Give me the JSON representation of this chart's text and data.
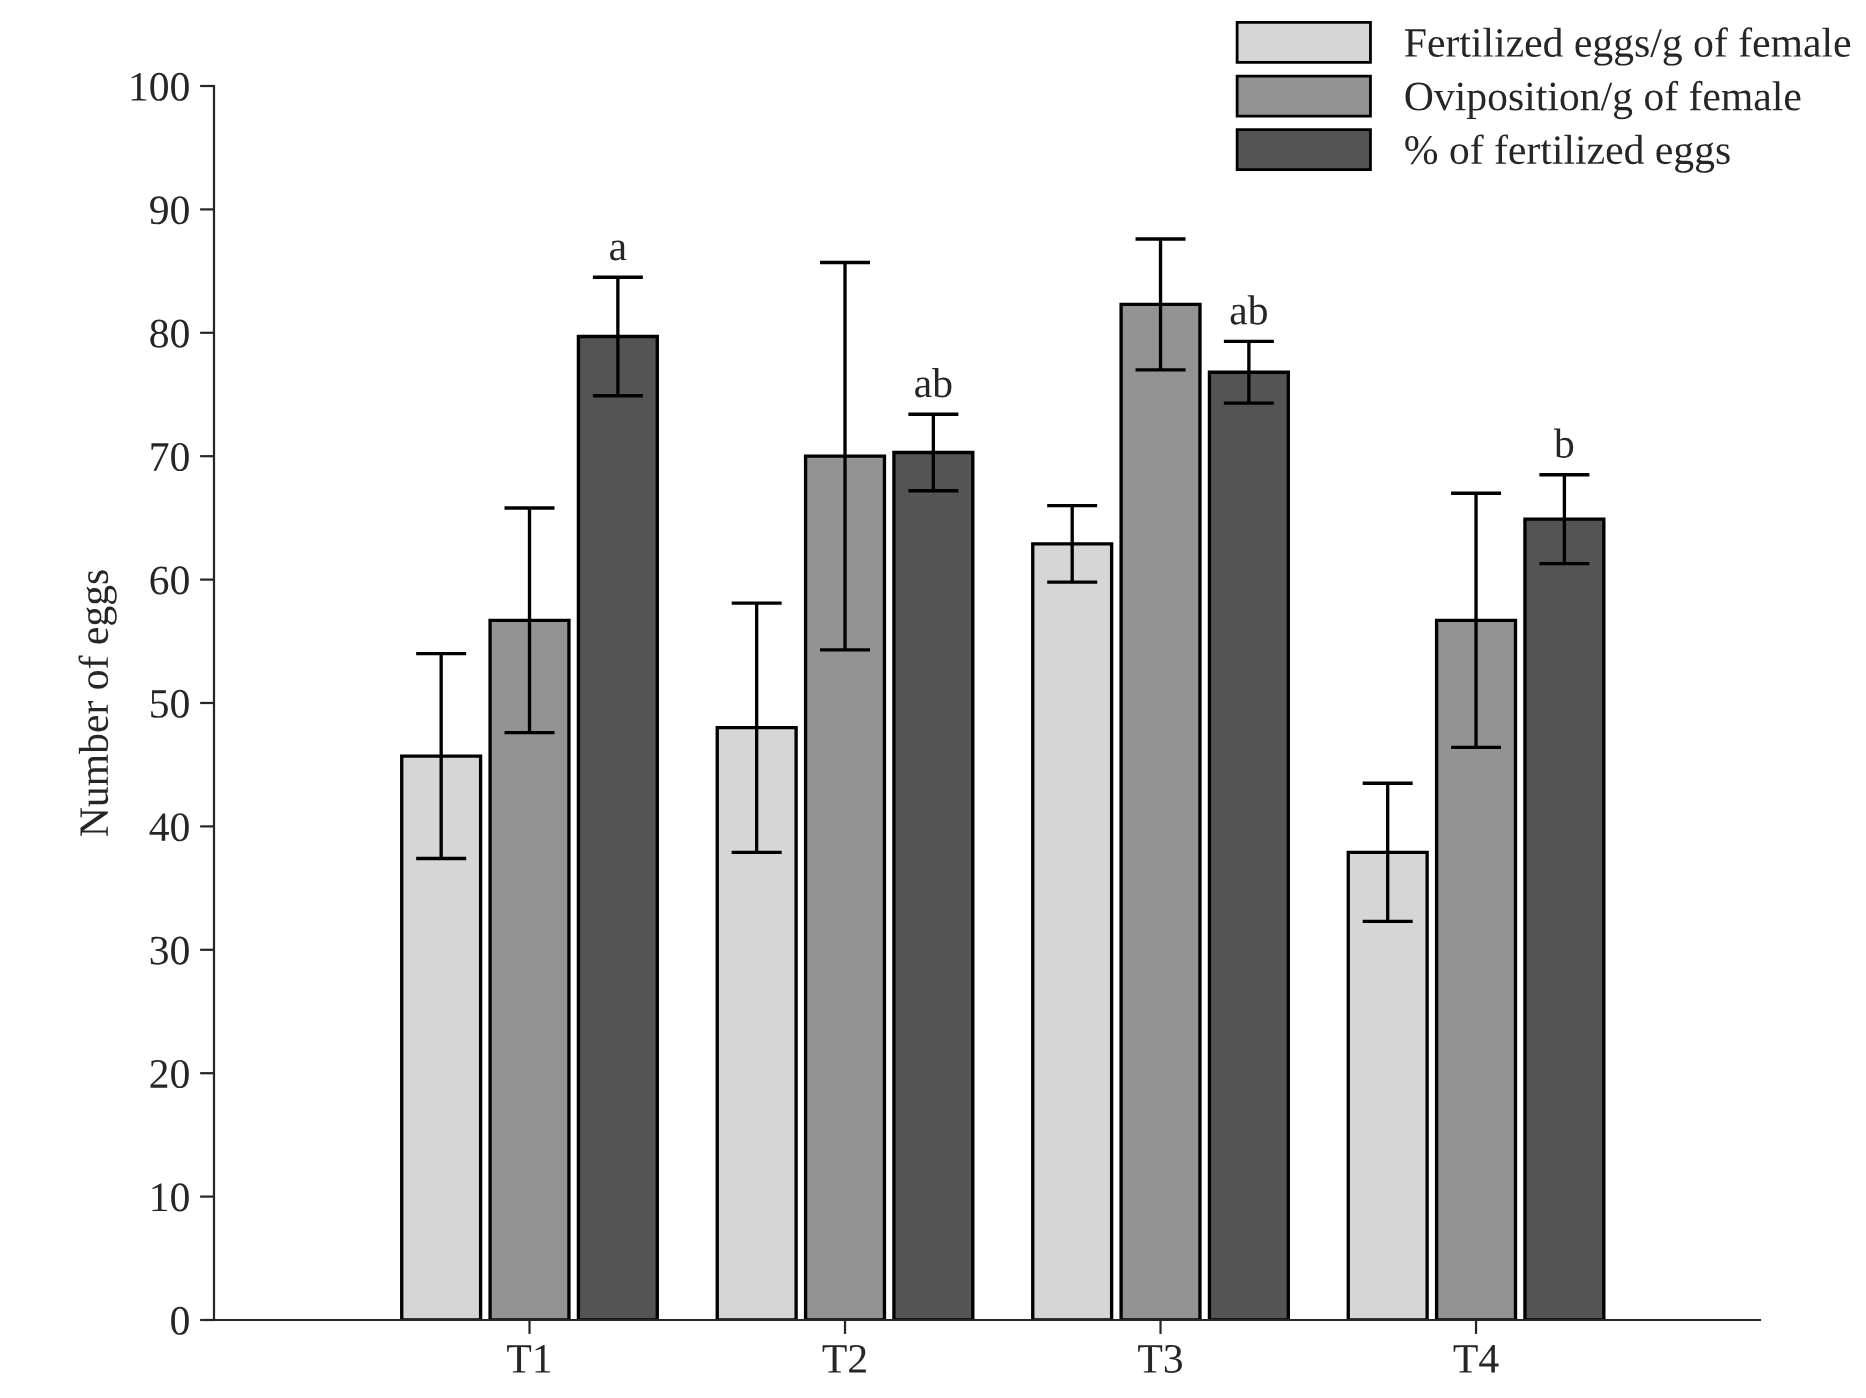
{
  "chart_data": {
    "type": "bar",
    "ylabel": "Number of eggs",
    "categories": [
      "T1",
      "T2",
      "T3",
      "T4"
    ],
    "series": [
      {
        "name": "Fertilized eggs/g of female",
        "color": "#d6d6d6",
        "values": [
          45.7,
          48,
          62.9,
          37.9
        ],
        "errors": [
          8.3,
          10.1,
          3.1,
          5.6
        ]
      },
      {
        "name": "Oviposition/g of female",
        "color": "#939393",
        "values": [
          56.7,
          70,
          82.3,
          56.7
        ],
        "errors": [
          9.1,
          15.7,
          5.3,
          10.3
        ]
      },
      {
        "name": "% of fertilized eggs",
        "color": "#545454",
        "values": [
          79.7,
          70.3,
          76.8,
          64.9
        ],
        "errors": [
          4.8,
          3.1,
          2.5,
          3.6
        ]
      }
    ],
    "ylim": [
      0,
      100
    ],
    "yticks": [
      0,
      10,
      20,
      30,
      40,
      50,
      60,
      70,
      80,
      90,
      100
    ],
    "annotations": [
      "a",
      "ab",
      "ab",
      "b"
    ],
    "grid": false,
    "legend": "top right"
  }
}
